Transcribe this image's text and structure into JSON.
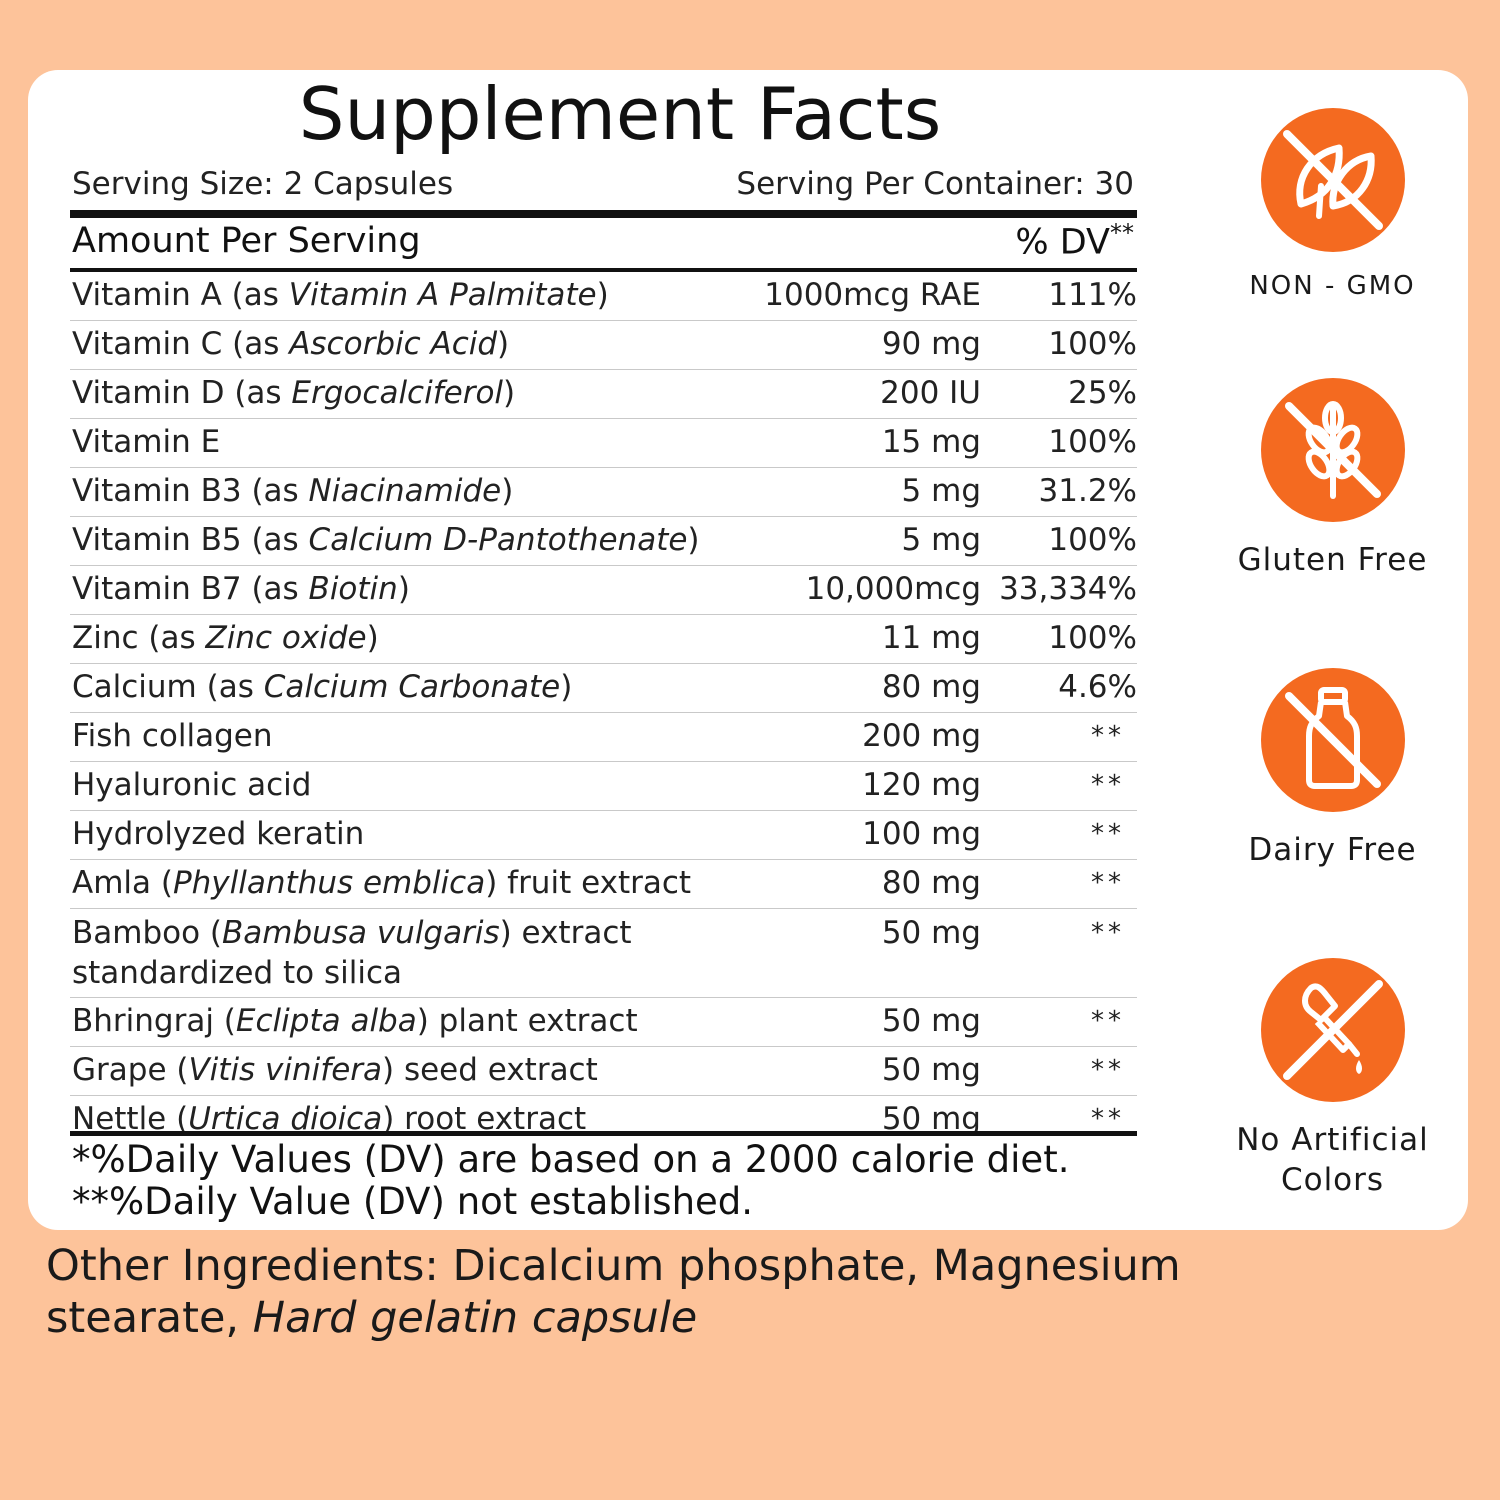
{
  "panel": {
    "title": "Supplement Facts",
    "serving_size": "Serving Size: 2 Capsules",
    "servings_per_container": "Serving Per Container: 30",
    "amount_per_serving": "Amount Per Serving",
    "dv_header": "% DV",
    "dv_header_stars": "**",
    "rows": [
      {
        "pre": "Vitamin A (as ",
        "italic": "Vitamin A Palmitate",
        "post": ")",
        "amount": "1000mcg RAE",
        "dv": "111%"
      },
      {
        "pre": "Vitamin C (as ",
        "italic": "Ascorbic Acid",
        "post": ")",
        "amount": "90 mg",
        "dv": "100%"
      },
      {
        "pre": "Vitamin D (as ",
        "italic": "Ergocalciferol",
        "post": ")",
        "amount": "200 IU",
        "dv": "25%"
      },
      {
        "pre": "Vitamin E",
        "italic": "",
        "post": "",
        "amount": "15 mg",
        "dv": "100%"
      },
      {
        "pre": "Vitamin B3 (as ",
        "italic": "Niacinamide",
        "post": ")",
        "amount": "5 mg",
        "dv": "31.2%"
      },
      {
        "pre": "Vitamin B5 (as ",
        "italic": "Calcium D-Pantothenate",
        "post": ")",
        "amount": "5 mg",
        "dv": "100%"
      },
      {
        "pre": "Vitamin B7 (as ",
        "italic": "Biotin",
        "post": ")",
        "amount": "10,000mcg",
        "dv": "33,334%"
      },
      {
        "pre": "Zinc (as ",
        "italic": "Zinc oxide",
        "post": ")",
        "amount": "11 mg",
        "dv": "100%"
      },
      {
        "pre": "Calcium (as ",
        "italic": "Calcium Carbonate",
        "post": ")",
        "amount": "80 mg",
        "dv": "4.6%"
      },
      {
        "pre": "Fish collagen",
        "italic": "",
        "post": "",
        "amount": "200 mg",
        "dv": "**"
      },
      {
        "pre": "Hyaluronic acid",
        "italic": "",
        "post": "",
        "amount": "120 mg",
        "dv": "**"
      },
      {
        "pre": "Hydrolyzed keratin",
        "italic": "",
        "post": "",
        "amount": "100 mg",
        "dv": "**"
      },
      {
        "pre": "Amla (",
        "italic": "Phyllanthus emblica",
        "post": ") fruit extract",
        "amount": "80 mg",
        "dv": "**"
      },
      {
        "pre": "Bamboo (",
        "italic": "Bambusa vulgaris",
        "post": ") extract standardized to silica",
        "amount": "50 mg",
        "dv": "**"
      },
      {
        "pre": "Bhringraj (",
        "italic": "Eclipta alba",
        "post": ") plant extract",
        "amount": "50 mg",
        "dv": "**"
      },
      {
        "pre": "Grape (",
        "italic": "Vitis vinifera",
        "post": ") seed extract",
        "amount": "50 mg",
        "dv": "**"
      },
      {
        "pre": "Nettle (",
        "italic": "Urtica dioica",
        "post": ") root extract",
        "amount": "50 mg",
        "dv": "**"
      }
    ],
    "footnote_1": "*%Daily Values (DV) are based on a 2000 calorie diet.",
    "footnote_2": "**%Daily Value (DV) not established."
  },
  "other_ingredients": {
    "plain": "Other Ingredients: Dicalcium phosphate, Magnesium stearate, ",
    "italic": "Hard gelatin capsule"
  },
  "badges": [
    {
      "icon": "no-gmo-leaf-icon",
      "label": "NON - GMO"
    },
    {
      "icon": "gluten-free-wheat-icon",
      "label": "Gluten Free"
    },
    {
      "icon": "dairy-free-bottle-icon",
      "label": "Dairy Free"
    },
    {
      "icon": "no-artificial-colors-dropper-icon",
      "label": "No Artificial Colors"
    }
  ],
  "colors": {
    "background": "#fdc39a",
    "card": "#ffffff",
    "badge_accent": "#f46a20",
    "text": "#1a1a1a"
  }
}
